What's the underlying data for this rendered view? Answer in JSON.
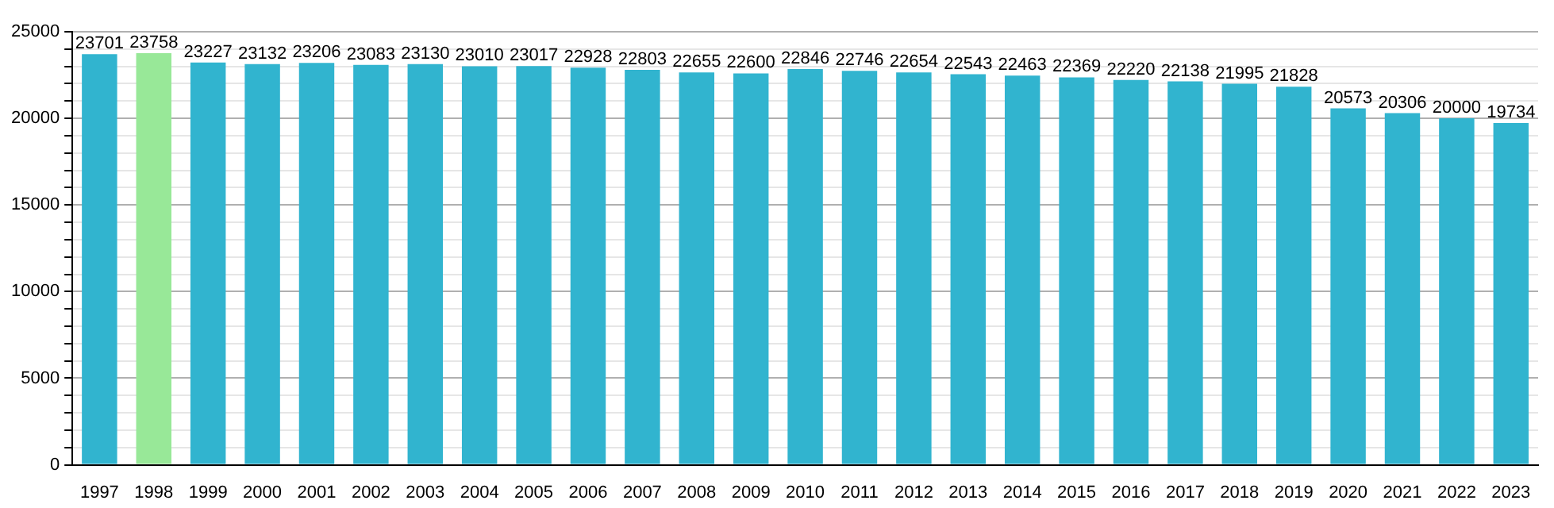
{
  "chart_data": {
    "type": "bar",
    "categories": [
      "1997",
      "1998",
      "1999",
      "2000",
      "2001",
      "2002",
      "2003",
      "2004",
      "2005",
      "2006",
      "2007",
      "2008",
      "2009",
      "2010",
      "2011",
      "2012",
      "2013",
      "2014",
      "2015",
      "2016",
      "2017",
      "2018",
      "2019",
      "2020",
      "2021",
      "2022",
      "2023"
    ],
    "values": [
      23701,
      23758,
      23227,
      23132,
      23206,
      23083,
      23130,
      23010,
      23017,
      22928,
      22803,
      22655,
      22600,
      22846,
      22746,
      22654,
      22543,
      22463,
      22369,
      22220,
      22138,
      21995,
      21828,
      20573,
      20306,
      20000,
      19734
    ],
    "colors": [
      "#31b4cf",
      "#98e898",
      "#31b4cf",
      "#31b4cf",
      "#31b4cf",
      "#31b4cf",
      "#31b4cf",
      "#31b4cf",
      "#31b4cf",
      "#31b4cf",
      "#31b4cf",
      "#31b4cf",
      "#31b4cf",
      "#31b4cf",
      "#31b4cf",
      "#31b4cf",
      "#31b4cf",
      "#31b4cf",
      "#31b4cf",
      "#31b4cf",
      "#31b4cf",
      "#31b4cf",
      "#31b4cf",
      "#31b4cf",
      "#31b4cf",
      "#31b4cf",
      "#31b4cf"
    ],
    "ylim": [
      0,
      25000
    ],
    "yticks": [
      0,
      {
        "value": 1000,
        "label": null
      },
      {
        "value": 2000,
        "label": null
      },
      {
        "value": 3000,
        "label": null
      },
      {
        "value": 4000,
        "label": null
      },
      5000,
      {
        "value": 6000,
        "label": null
      },
      {
        "value": 7000,
        "label": null
      },
      {
        "value": 8000,
        "label": null
      },
      {
        "value": 9000,
        "label": null
      },
      10000,
      {
        "value": 11000,
        "label": null
      },
      {
        "value": 12000,
        "label": null
      },
      {
        "value": 13000,
        "label": null
      },
      {
        "value": 14000,
        "label": null
      },
      15000,
      {
        "value": 16000,
        "label": null
      },
      {
        "value": 17000,
        "label": null
      },
      {
        "value": 18000,
        "label": null
      },
      {
        "value": 19000,
        "label": null
      },
      20000,
      {
        "value": 21000,
        "label": null
      },
      {
        "value": 22000,
        "label": null
      },
      {
        "value": 23000,
        "label": null
      },
      {
        "value": 24000,
        "label": null
      },
      25000
    ],
    "grid": "y",
    "data_labels": true,
    "legend": false
  }
}
